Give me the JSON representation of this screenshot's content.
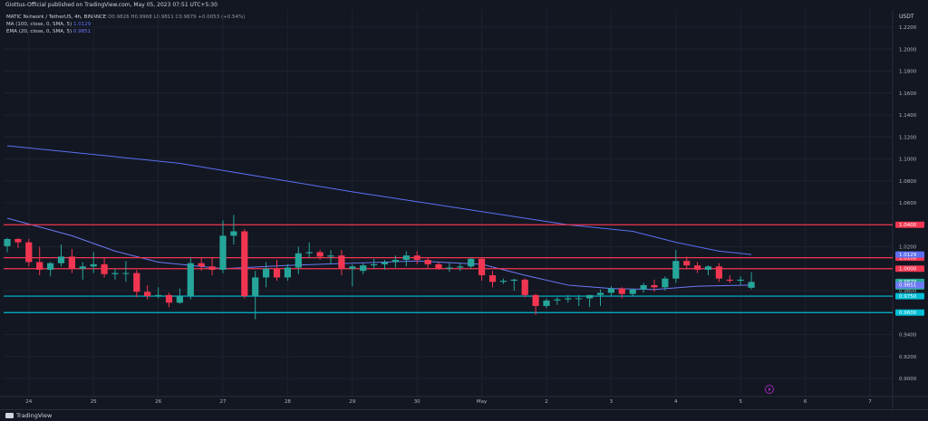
{
  "header": {
    "publisher": "Giottus-Official published on TradingView.com, May 05, 2023 07:51 UTC+5:30"
  },
  "legend": {
    "symbol": "MATIC Network / TetherUS, 4h, BINANCE",
    "ohlc": "O0.9826 H0.9968 L0.9811 C0.9879 +0.0053 (+0.54%)",
    "ma": "MA (100, close, 0, SMA, 5)",
    "ma_value": "1.0129",
    "ema": "EMA (20, close, 0, SMA, 5)",
    "ema_value": "0.9851"
  },
  "footer": {
    "logo_text": "TradingView"
  },
  "chart_data": {
    "type": "candlestick",
    "currency": "USDT",
    "ylim": [
      0.9,
      1.22
    ],
    "y_ticks": [
      "1.2200",
      "1.2000",
      "1.1800",
      "1.1600",
      "1.1400",
      "1.1200",
      "1.1000",
      "1.0800",
      "1.0600",
      "1.0400",
      "1.0200",
      "1.0000",
      "0.9800",
      "0.9600",
      "0.9400",
      "0.9200",
      "0.9000"
    ],
    "x_ticks": [
      {
        "label": "24",
        "index": 2
      },
      {
        "label": "25",
        "index": 8
      },
      {
        "label": "26",
        "index": 14
      },
      {
        "label": "27",
        "index": 20
      },
      {
        "label": "28",
        "index": 26
      },
      {
        "label": "29",
        "index": 32
      },
      {
        "label": "30",
        "index": 38
      },
      {
        "label": "May",
        "index": 44
      },
      {
        "label": "2",
        "index": 50
      },
      {
        "label": "3",
        "index": 56
      },
      {
        "label": "4",
        "index": 62
      },
      {
        "label": "5",
        "index": 68
      },
      {
        "label": "6",
        "index": 74
      },
      {
        "label": "7",
        "index": 80
      }
    ],
    "candles": [
      [
        1.0205,
        1.028,
        1.015,
        1.027
      ],
      [
        1.027,
        1.028,
        1.019,
        1.024
      ],
      [
        1.024,
        1.027,
        1.002,
        1.006
      ],
      [
        1.006,
        1.02,
        0.994,
        0.999
      ],
      [
        0.999,
        1.006,
        0.993,
        1.005
      ],
      [
        1.005,
        1.022,
        1.002,
        1.011
      ],
      [
        1.011,
        1.018,
        0.996,
        1.0
      ],
      [
        1.0,
        1.006,
        0.99,
        1.002
      ],
      [
        1.002,
        1.015,
        0.996,
        1.004
      ],
      [
        1.004,
        1.01,
        0.992,
        0.995
      ],
      [
        0.995,
        1.0,
        0.99,
        0.996
      ],
      [
        0.996,
        1.007,
        0.988,
        0.996
      ],
      [
        0.996,
        0.999,
        0.974,
        0.979
      ],
      [
        0.979,
        0.985,
        0.972,
        0.975
      ],
      [
        0.975,
        0.983,
        0.973,
        0.976
      ],
      [
        0.976,
        0.978,
        0.965,
        0.969
      ],
      [
        0.969,
        0.982,
        0.968,
        0.975
      ],
      [
        0.975,
        1.01,
        0.972,
        1.005
      ],
      [
        1.005,
        1.01,
        0.998,
        1.002
      ],
      [
        1.002,
        1.01,
        0.994,
        0.999
      ],
      [
        0.999,
        1.044,
        0.996,
        1.03
      ],
      [
        1.03,
        1.049,
        1.022,
        1.034
      ],
      [
        1.034,
        1.036,
        0.973,
        0.975
      ],
      [
        0.975,
        0.998,
        0.954,
        0.992
      ],
      [
        0.992,
        1.006,
        0.983,
        1.0
      ],
      [
        1.0,
        1.008,
        0.989,
        0.992
      ],
      [
        0.992,
        1.004,
        0.989,
        1.001
      ],
      [
        1.001,
        1.02,
        0.995,
        1.014
      ],
      [
        1.014,
        1.024,
        1.01,
        1.015
      ],
      [
        1.015,
        1.017,
        1.008,
        1.011
      ],
      [
        1.011,
        1.017,
        1.004,
        1.012
      ],
      [
        1.012,
        1.017,
        0.994,
        1.0
      ],
      [
        1.0,
        1.004,
        0.984,
        1.002
      ],
      [
        0.998,
        1.005,
        0.995,
        1.003
      ],
      [
        1.003,
        1.009,
        1.0,
        1.004
      ],
      [
        1.004,
        1.008,
        0.999,
        1.006
      ],
      [
        1.006,
        1.012,
        1.001,
        1.008
      ],
      [
        1.008,
        1.016,
        1.002,
        1.012
      ],
      [
        1.012,
        1.016,
        1.004,
        1.008
      ],
      [
        1.008,
        1.01,
        1.0,
        1.004
      ],
      [
        1.004,
        1.006,
        0.999,
        1.0
      ],
      [
        1.0,
        1.005,
        0.997,
        1.001
      ],
      [
        1.001,
        1.005,
        0.998,
        1.002
      ],
      [
        1.002,
        1.01,
        1.0,
        1.009
      ],
      [
        1.009,
        1.01,
        0.989,
        0.994
      ],
      [
        0.994,
        0.998,
        0.983,
        0.988
      ],
      [
        0.988,
        0.991,
        0.986,
        0.989
      ],
      [
        0.989,
        0.991,
        0.98,
        0.99
      ],
      [
        0.99,
        0.991,
        0.974,
        0.976
      ],
      [
        0.976,
        0.977,
        0.958,
        0.966
      ],
      [
        0.966,
        0.973,
        0.964,
        0.971
      ],
      [
        0.971,
        0.974,
        0.967,
        0.972
      ],
      [
        0.972,
        0.976,
        0.969,
        0.973
      ],
      [
        0.973,
        0.976,
        0.966,
        0.973
      ],
      [
        0.973,
        0.976,
        0.965,
        0.976
      ],
      [
        0.976,
        0.981,
        0.966,
        0.978
      ],
      [
        0.978,
        0.984,
        0.975,
        0.982
      ],
      [
        0.982,
        0.983,
        0.973,
        0.977
      ],
      [
        0.977,
        0.982,
        0.975,
        0.981
      ],
      [
        0.981,
        0.987,
        0.978,
        0.985
      ],
      [
        0.985,
        0.99,
        0.979,
        0.983
      ],
      [
        0.983,
        0.993,
        0.98,
        0.991
      ],
      [
        0.991,
        1.017,
        0.987,
        1.007
      ],
      [
        1.007,
        1.011,
        1.0,
        1.003
      ],
      [
        1.003,
        1.006,
        0.996,
        0.999
      ],
      [
        0.999,
        1.003,
        0.994,
        1.002
      ],
      [
        1.002,
        1.005,
        0.988,
        0.991
      ],
      [
        0.99,
        0.994,
        0.987,
        0.989
      ],
      [
        0.989,
        0.993,
        0.985,
        0.99
      ],
      [
        0.9826,
        0.9968,
        0.9811,
        0.9879
      ]
    ],
    "ma_100": [
      [
        0,
        1.112
      ],
      [
        16,
        1.096
      ],
      [
        24,
        1.083
      ],
      [
        32,
        1.07
      ],
      [
        40,
        1.058
      ],
      [
        46,
        1.049
      ],
      [
        52,
        1.04
      ],
      [
        58,
        1.034
      ],
      [
        62,
        1.024
      ],
      [
        66,
        1.016
      ],
      [
        69,
        1.0129
      ]
    ],
    "ema_20": [
      [
        0,
        1.046
      ],
      [
        6,
        1.03
      ],
      [
        10,
        1.016
      ],
      [
        14,
        1.006
      ],
      [
        20,
        1.0
      ],
      [
        26,
        1.003
      ],
      [
        32,
        1.005
      ],
      [
        38,
        1.007
      ],
      [
        44,
        1.004
      ],
      [
        48,
        0.994
      ],
      [
        52,
        0.985
      ],
      [
        56,
        0.982
      ],
      [
        60,
        0.981
      ],
      [
        64,
        0.984
      ],
      [
        69,
        0.9851
      ]
    ],
    "h_lines": [
      {
        "value": 1.04,
        "label": "1.0400",
        "color": "#f23651"
      },
      {
        "value": 1.01,
        "label": "1.0100",
        "color": "#f23651"
      },
      {
        "value": 1.0,
        "label": "1.0000",
        "color": "#f23651"
      },
      {
        "value": 0.975,
        "label": "0.9750",
        "color": "#00bcd4"
      },
      {
        "value": 0.96,
        "label": "0.9600",
        "color": "#00bcd4"
      }
    ],
    "price_tags": [
      {
        "value": 1.0129,
        "label": "1.0129",
        "color": "#5b6ff2"
      },
      {
        "value": 0.9879,
        "label": "0.9879",
        "sub": "01:38:56",
        "color": "#26a69a"
      },
      {
        "value": 0.9851,
        "label": "0.9851",
        "color": "#6c79f5"
      }
    ],
    "colors": {
      "up": "#26a69a",
      "down": "#f23651",
      "ma": "#5b6ff2",
      "ema": "#6c79f5"
    }
  }
}
